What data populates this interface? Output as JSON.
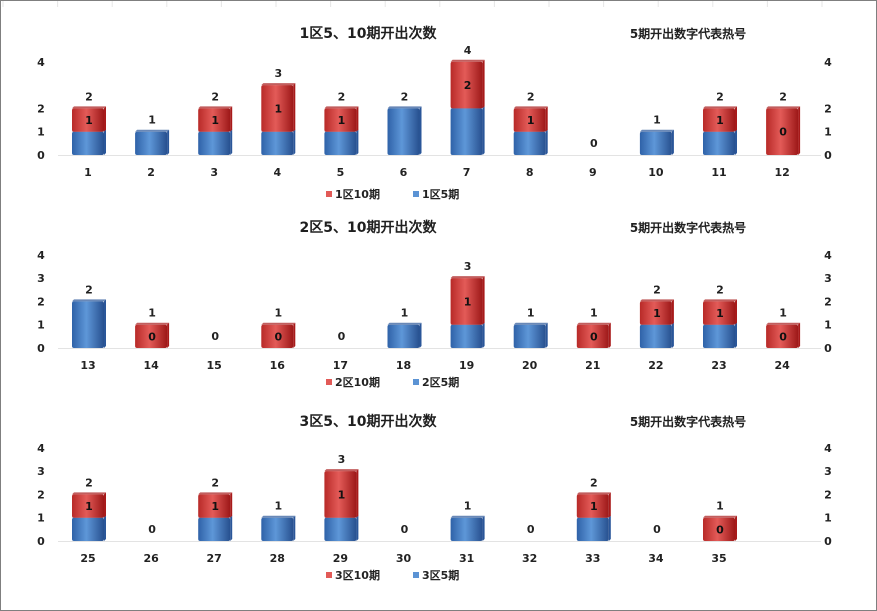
{
  "colors": {
    "red_light": "#e25a57",
    "red_dark": "#a81a1a",
    "blue_light": "#5b93d4",
    "blue_dark": "#2a5699",
    "gridline": "#d0d0d0"
  },
  "chart_data": [
    {
      "type": "bar",
      "title": "1区5、10期开出次数",
      "note": "5期开出数字代表热号",
      "categories": [
        "1",
        "2",
        "3",
        "4",
        "5",
        "6",
        "7",
        "8",
        "9",
        "10",
        "11",
        "12"
      ],
      "series": [
        {
          "name": "1区10期",
          "values": [
            2,
            1,
            2,
            3,
            2,
            2,
            4,
            2,
            0,
            1,
            2,
            2
          ]
        },
        {
          "name": "1区5期",
          "values": [
            1,
            1,
            1,
            1,
            1,
            2,
            2,
            1,
            0,
            1,
            1,
            0
          ]
        }
      ],
      "ylim": [
        0,
        4
      ],
      "yticks": [
        0,
        1,
        2,
        4
      ],
      "legend": "bottom"
    },
    {
      "type": "bar",
      "title": "2区5、10期开出次数",
      "note": "5期开出数字代表热号",
      "categories": [
        "13",
        "14",
        "15",
        "16",
        "17",
        "18",
        "19",
        "20",
        "21",
        "22",
        "23",
        "24"
      ],
      "series": [
        {
          "name": "2区10期",
          "values": [
            2,
            1,
            0,
            1,
            0,
            1,
            3,
            1,
            1,
            2,
            2,
            1
          ]
        },
        {
          "name": "2区5期",
          "values": [
            2,
            0,
            0,
            0,
            0,
            1,
            1,
            1,
            0,
            1,
            1,
            0
          ]
        }
      ],
      "ylim": [
        0,
        4
      ],
      "yticks": [
        0,
        1,
        2,
        3,
        4
      ],
      "legend": "bottom"
    },
    {
      "type": "bar",
      "title": "3区5、10期开出次数",
      "note": "5期开出数字代表热号",
      "categories": [
        "25",
        "26",
        "27",
        "28",
        "29",
        "30",
        "31",
        "32",
        "33",
        "34",
        "35"
      ],
      "series": [
        {
          "name": "3区10期",
          "values": [
            2,
            0,
            2,
            1,
            3,
            0,
            1,
            0,
            2,
            0,
            1
          ]
        },
        {
          "name": "3区5期",
          "values": [
            1,
            0,
            1,
            1,
            1,
            0,
            1,
            0,
            1,
            0,
            0
          ]
        }
      ],
      "ylim": [
        0,
        4
      ],
      "yticks": [
        0,
        1,
        2,
        3,
        4
      ],
      "legend": "bottom"
    }
  ]
}
